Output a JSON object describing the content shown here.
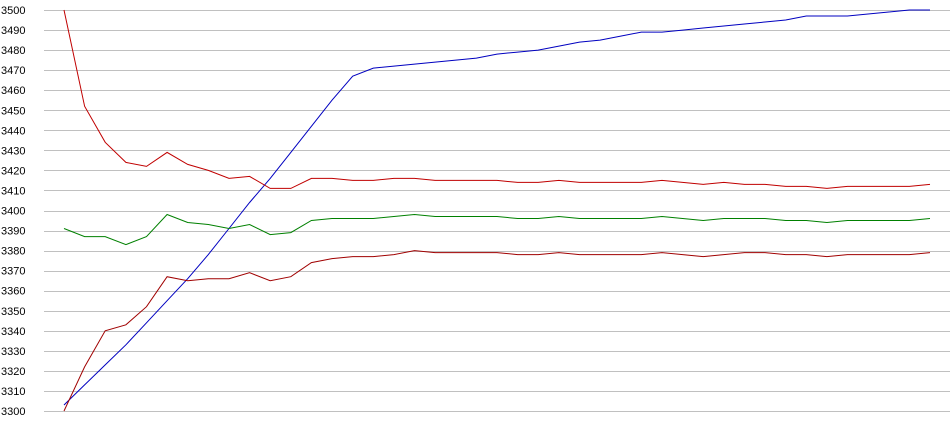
{
  "chart_data": {
    "type": "line",
    "title": "",
    "xlabel": "",
    "ylabel": "",
    "ylim": [
      3300,
      3500
    ],
    "yticks": [
      3300,
      3310,
      3320,
      3330,
      3340,
      3350,
      3360,
      3370,
      3380,
      3390,
      3400,
      3410,
      3420,
      3430,
      3440,
      3450,
      3460,
      3470,
      3480,
      3490,
      3500
    ],
    "grid": "horizontal",
    "legend": "none",
    "x": [
      0,
      1,
      2,
      3,
      4,
      5,
      6,
      7,
      8,
      9,
      10,
      11,
      12,
      13,
      14,
      15,
      16,
      17,
      18,
      19,
      20,
      21,
      22,
      23,
      24,
      25,
      26,
      27,
      28,
      29,
      30,
      31,
      32,
      33,
      34,
      35,
      36,
      37,
      38,
      39,
      40,
      41,
      42
    ],
    "series": [
      {
        "color": "#0000c0",
        "values": [
          3303,
          3313,
          3323,
          3333,
          3344,
          3355,
          3366,
          3378,
          3391,
          3404,
          3416,
          3429,
          3442,
          3455,
          3467,
          3471,
          3472,
          3473,
          3474,
          3475,
          3476,
          3478,
          3479,
          3480,
          3482,
          3484,
          3485,
          3487,
          3489,
          3489,
          3490,
          3491,
          3492,
          3493,
          3494,
          3495,
          3497,
          3497,
          3497,
          3498,
          3499,
          3500,
          3500
        ]
      },
      {
        "color": "#c00000",
        "values": [
          3500,
          3452,
          3434,
          3424,
          3422,
          3429,
          3423,
          3420,
          3416,
          3417,
          3411,
          3411,
          3416,
          3416,
          3415,
          3415,
          3416,
          3416,
          3415,
          3415,
          3415,
          3415,
          3414,
          3414,
          3415,
          3414,
          3414,
          3414,
          3414,
          3415,
          3414,
          3413,
          3414,
          3413,
          3413,
          3412,
          3412,
          3411,
          3412,
          3412,
          3412,
          3412,
          3413
        ]
      },
      {
        "color": "#008000",
        "values": [
          3391,
          3387,
          3387,
          3383,
          3387,
          3398,
          3394,
          3393,
          3391,
          3393,
          3388,
          3389,
          3395,
          3396,
          3396,
          3396,
          3397,
          3398,
          3397,
          3397,
          3397,
          3397,
          3396,
          3396,
          3397,
          3396,
          3396,
          3396,
          3396,
          3397,
          3396,
          3395,
          3396,
          3396,
          3396,
          3395,
          3395,
          3394,
          3395,
          3395,
          3395,
          3395,
          3396
        ]
      },
      {
        "color": "#a00000",
        "values": [
          3300,
          3322,
          3340,
          3343,
          3352,
          3367,
          3365,
          3366,
          3366,
          3369,
          3365,
          3367,
          3374,
          3376,
          3377,
          3377,
          3378,
          3380,
          3379,
          3379,
          3379,
          3379,
          3378,
          3378,
          3379,
          3378,
          3378,
          3378,
          3378,
          3379,
          3378,
          3377,
          3378,
          3379,
          3379,
          3378,
          3378,
          3377,
          3378,
          3378,
          3378,
          3378,
          3379
        ]
      }
    ]
  }
}
